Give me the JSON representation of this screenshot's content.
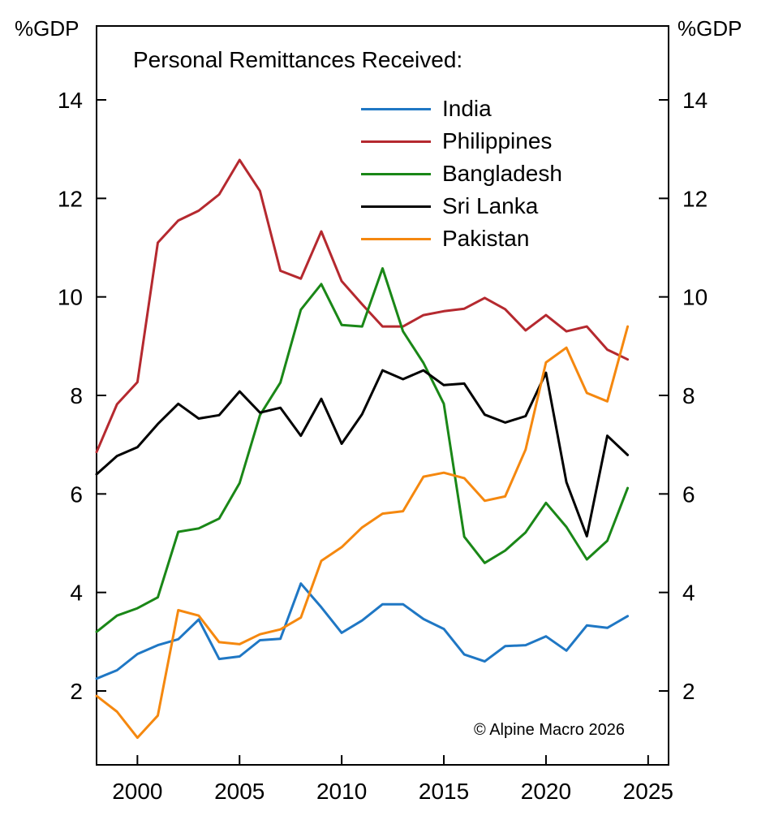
{
  "chart_data": {
    "type": "line",
    "title": "Personal Remittances Received:",
    "ylabel_left": "%GDP",
    "ylabel_right": "%GDP",
    "xlim": [
      1998,
      2026
    ],
    "ylim": [
      0.5,
      15.5
    ],
    "x_ticks": [
      2000,
      2005,
      2010,
      2015,
      2020,
      2025
    ],
    "y_ticks": [
      2,
      4,
      6,
      8,
      10,
      12,
      14
    ],
    "legend_position": "top-right",
    "grid": false,
    "x": [
      1998,
      1999,
      2000,
      2001,
      2002,
      2003,
      2004,
      2005,
      2006,
      2007,
      2008,
      2009,
      2010,
      2011,
      2012,
      2013,
      2014,
      2015,
      2016,
      2017,
      2018,
      2019,
      2020,
      2021,
      2022,
      2023,
      2024
    ],
    "series": [
      {
        "name": "India",
        "color": "#1f77c4",
        "values": [
          2.25,
          2.42,
          2.75,
          2.93,
          3.05,
          3.45,
          2.65,
          2.7,
          3.03,
          3.06,
          4.18,
          3.7,
          3.18,
          3.43,
          3.76,
          3.76,
          3.46,
          3.26,
          2.74,
          2.6,
          2.91,
          2.93,
          3.11,
          2.82,
          3.33,
          3.28,
          3.52
        ]
      },
      {
        "name": "Philippines",
        "color": "#b5292f",
        "values": [
          6.85,
          7.82,
          8.27,
          11.1,
          11.55,
          11.75,
          12.08,
          12.78,
          12.15,
          10.53,
          10.37,
          11.33,
          10.32,
          9.85,
          9.4,
          9.4,
          9.63,
          9.71,
          9.76,
          9.98,
          9.75,
          9.32,
          9.63,
          9.3,
          9.4,
          8.93,
          8.73
        ]
      },
      {
        "name": "Bangladesh",
        "color": "#1a8717",
        "values": [
          3.2,
          3.53,
          3.68,
          3.9,
          5.23,
          5.3,
          5.5,
          6.22,
          7.6,
          8.26,
          9.74,
          10.26,
          9.43,
          9.4,
          10.58,
          9.3,
          8.66,
          7.83,
          5.13,
          4.6,
          4.85,
          5.22,
          5.82,
          5.33,
          4.67,
          5.05,
          6.12
        ]
      },
      {
        "name": "Sri Lanka",
        "color": "#000000",
        "values": [
          6.4,
          6.77,
          6.95,
          7.42,
          7.83,
          7.53,
          7.6,
          8.08,
          7.65,
          7.75,
          7.18,
          7.93,
          7.02,
          7.62,
          8.51,
          8.33,
          8.51,
          8.21,
          8.24,
          7.61,
          7.45,
          7.58,
          8.46,
          6.24,
          5.14,
          7.18,
          6.79
        ]
      },
      {
        "name": "Pakistan",
        "color": "#f5880f",
        "values": [
          1.9,
          1.58,
          1.05,
          1.5,
          3.64,
          3.53,
          2.99,
          2.95,
          3.15,
          3.25,
          3.49,
          4.64,
          4.92,
          5.32,
          5.6,
          5.65,
          6.35,
          6.43,
          6.32,
          5.86,
          5.95,
          6.9,
          8.67,
          8.97,
          8.05,
          7.88,
          9.4
        ]
      }
    ]
  },
  "footer": {
    "copyright": "© Alpine Macro 2026"
  }
}
